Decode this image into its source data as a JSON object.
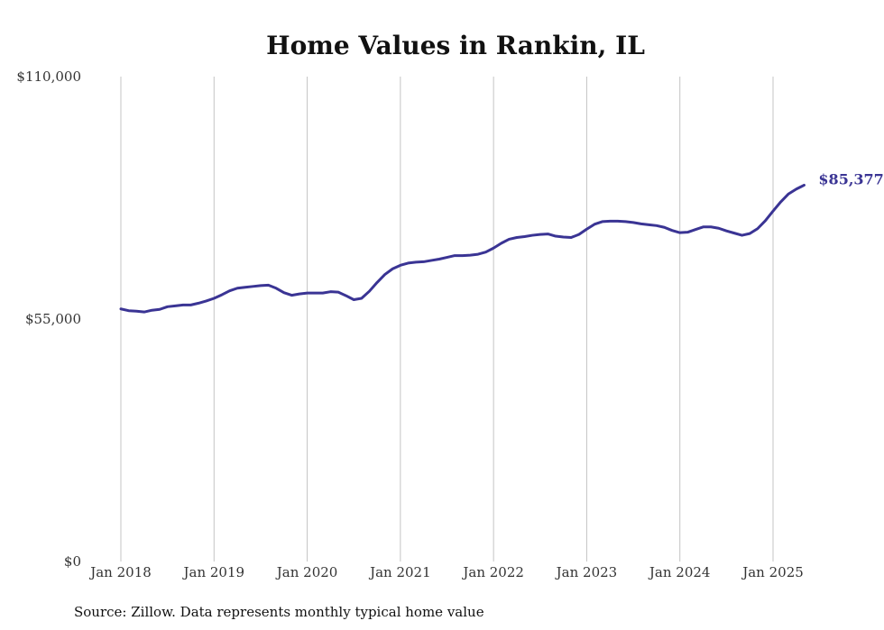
{
  "chart_data": {
    "type": "line",
    "title": "Home Values in Rankin, IL",
    "source": "Source: Zillow. Data represents monthly typical home value",
    "y_ticks": [
      {
        "value": 0,
        "label": "$0"
      },
      {
        "value": 55000,
        "label": "$55,000"
      },
      {
        "value": 110000,
        "label": "$110,000"
      }
    ],
    "x_ticks": [
      "Jan 2018",
      "Jan 2019",
      "Jan 2020",
      "Jan 2021",
      "Jan 2022",
      "Jan 2023",
      "Jan 2024",
      "Jan 2025"
    ],
    "ylim": [
      0,
      110000
    ],
    "grid": "vertical",
    "line_color": "#3a3494",
    "end_label": "$85,377",
    "series": [
      {
        "values": [
          57300,
          56900,
          56800,
          56600,
          57000,
          57200,
          57800,
          58000,
          58200,
          58200,
          58600,
          59100,
          59700,
          60500,
          61400,
          62000,
          62200,
          62400,
          62600,
          62700,
          62000,
          61000,
          60400,
          60700,
          60900,
          60900,
          60900,
          61200,
          61100,
          60300,
          59400,
          59700,
          61300,
          63300,
          65100,
          66400,
          67200,
          67700,
          67900,
          68000,
          68300,
          68600,
          69000,
          69400,
          69400,
          69500,
          69700,
          70200,
          71100,
          72200,
          73100,
          73500,
          73700,
          74000,
          74200,
          74300,
          73800,
          73600,
          73500,
          74200,
          75400,
          76500,
          77100,
          77200,
          77200,
          77100,
          76900,
          76600,
          76400,
          76200,
          75800,
          75100,
          74600,
          74700,
          75300,
          75900,
          75900,
          75600,
          75000,
          74500,
          74000,
          74400,
          75500,
          77300,
          79500,
          81600,
          83400,
          84500,
          85377
        ]
      }
    ]
  }
}
